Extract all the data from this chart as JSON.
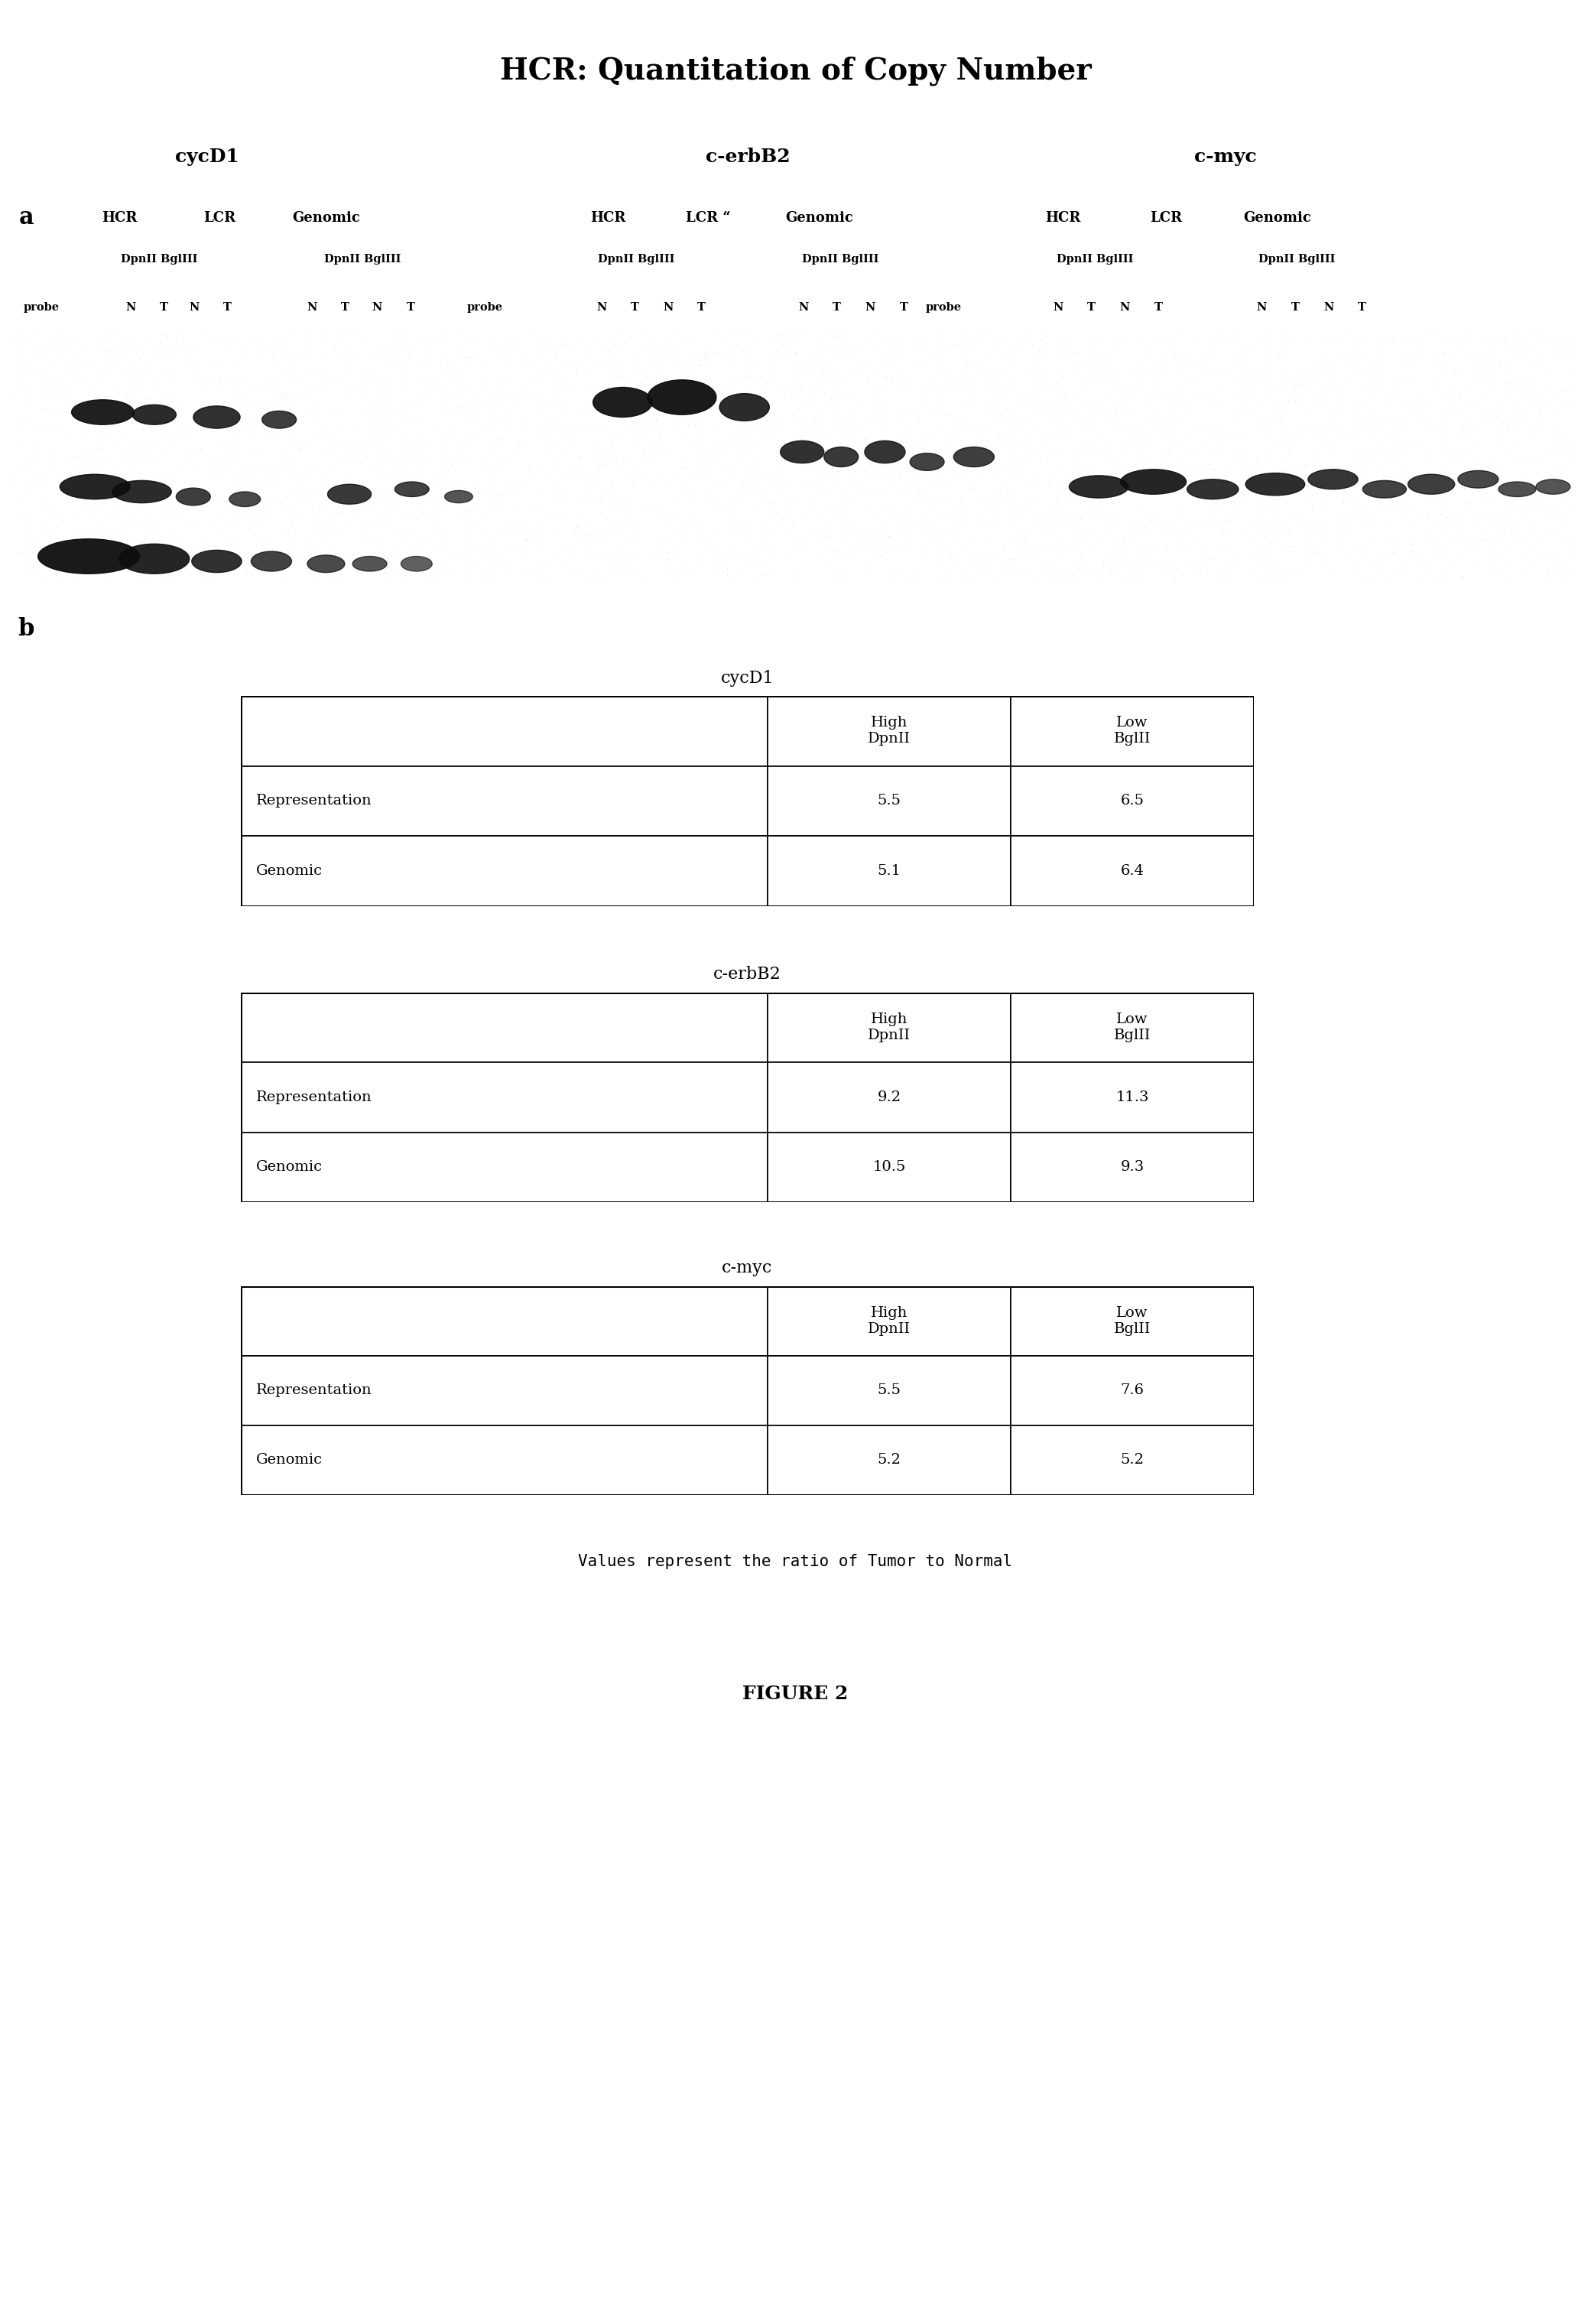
{
  "title": "HCR: Quantitation of Copy Number",
  "panel_a_label": "a",
  "panel_b_label": "b",
  "figure_label": "FIGURE 2",
  "gene_labels": [
    "cycD1",
    "c-erbB2",
    "c-myc"
  ],
  "tables": [
    {
      "title": "cycD1",
      "col_headers": [
        "High\nDpnII",
        "Low\nBglII"
      ],
      "rows": [
        [
          "Representation",
          "5.5",
          "6.5"
        ],
        [
          "Genomic",
          "5.1",
          "6.4"
        ]
      ]
    },
    {
      "title": "c-erbB2",
      "col_headers": [
        "High\nDpnII",
        "Low\nBglII"
      ],
      "rows": [
        [
          "Representation",
          "9.2",
          "11.3"
        ],
        [
          "Genomic",
          "10.5",
          "9.3"
        ]
      ]
    },
    {
      "title": "c-myc",
      "col_headers": [
        "High\nDpnII",
        "Low\nBglII"
      ],
      "rows": [
        [
          "Representation",
          "5.5",
          "7.6"
        ],
        [
          "Genomic",
          "5.2",
          "5.2"
        ]
      ]
    }
  ],
  "footer_note": "Values represent the ratio of Tumor to Normal",
  "bg_color": "#ffffff",
  "text_color": "#000000",
  "title_fontsize": 28,
  "gene_label_fontsize": 18,
  "header_fontsize": 13,
  "table_title_fontsize": 16,
  "table_cell_fontsize": 14,
  "footer_fontsize": 15,
  "figure_label_fontsize": 18,
  "panel_label_fontsize": 22
}
